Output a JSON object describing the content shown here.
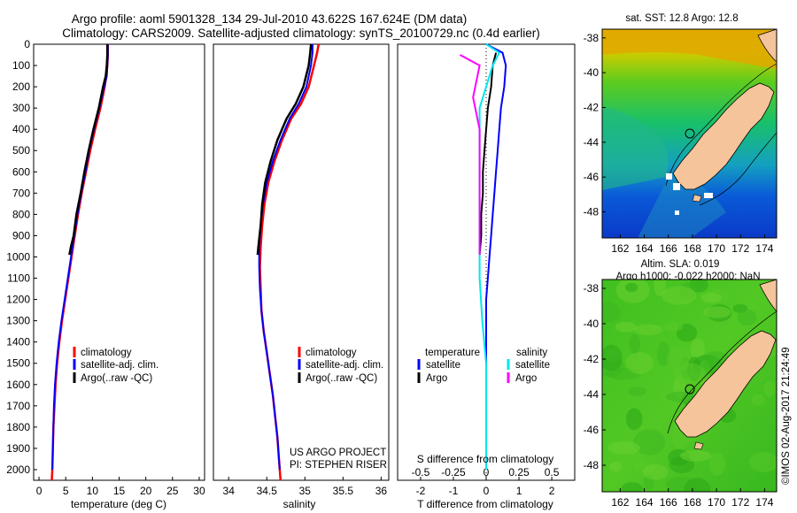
{
  "title_line1": "Argo profile: aoml 5901328_134 29-Jul-2010 43.622S 167.624E (DM data)",
  "title_line2": "Climatology: CARS2009. Satellite-adjusted climatology: synTS_20100729.nc (0.4d earlier)",
  "colors": {
    "climatology": "#ff0000",
    "satellite": "#0000ff",
    "argo": "#000000",
    "sal_satellite": "#00e5ee",
    "sal_argo": "#ff00ff"
  },
  "chart_data": [
    {
      "type": "line",
      "name": "temperature-profile",
      "xlabel": "temperature (deg C)",
      "xlim": [
        -1,
        31
      ],
      "ylim": [
        2050,
        0
      ],
      "xticks": [
        0,
        5,
        10,
        15,
        20,
        25,
        30
      ],
      "yticks": [
        0,
        100,
        200,
        300,
        400,
        500,
        600,
        700,
        800,
        900,
        1000,
        1100,
        1200,
        1300,
        1400,
        1500,
        1600,
        1700,
        1800,
        1900,
        2000
      ],
      "legend": [
        "climatology",
        "satellite-adj. clim.",
        "Argo(..raw -QC)"
      ],
      "series": [
        {
          "name": "climatology",
          "color": "#ff0000",
          "points": [
            [
              12.9,
              0
            ],
            [
              12.9,
              50
            ],
            [
              12.8,
              100
            ],
            [
              12.6,
              150
            ],
            [
              12.3,
              200
            ],
            [
              11.5,
              300
            ],
            [
              10.5,
              400
            ],
            [
              9.6,
              500
            ],
            [
              8.8,
              600
            ],
            [
              8.0,
              700
            ],
            [
              7.3,
              800
            ],
            [
              6.7,
              900
            ],
            [
              6.1,
              1000
            ],
            [
              5.5,
              1100
            ],
            [
              4.9,
              1200
            ],
            [
              4.3,
              1300
            ],
            [
              3.8,
              1400
            ],
            [
              3.4,
              1500
            ],
            [
              3.1,
              1600
            ],
            [
              2.9,
              1700
            ],
            [
              2.7,
              1800
            ],
            [
              2.6,
              1900
            ],
            [
              2.5,
              2000
            ],
            [
              2.4,
              2050
            ]
          ]
        },
        {
          "name": "satellite-adj. clim.",
          "color": "#0000ff",
          "points": [
            [
              12.9,
              0
            ],
            [
              12.9,
              50
            ],
            [
              12.8,
              100
            ],
            [
              12.7,
              150
            ],
            [
              12.2,
              200
            ],
            [
              11.3,
              300
            ],
            [
              10.3,
              400
            ],
            [
              9.4,
              500
            ],
            [
              8.7,
              600
            ],
            [
              7.9,
              700
            ],
            [
              7.2,
              800
            ],
            [
              6.6,
              900
            ],
            [
              6.0,
              1000
            ],
            [
              5.4,
              1100
            ],
            [
              4.8,
              1200
            ],
            [
              4.2,
              1300
            ],
            [
              3.7,
              1400
            ],
            [
              3.3,
              1500
            ],
            [
              3.0,
              1600
            ],
            [
              2.8,
              1700
            ],
            [
              2.7,
              1800
            ],
            [
              2.6,
              1900
            ],
            [
              2.5,
              2000
            ]
          ]
        },
        {
          "name": "Argo(..raw -QC)",
          "color": "#000000",
          "points": [
            [
              12.8,
              0
            ],
            [
              12.8,
              50
            ],
            [
              12.7,
              100
            ],
            [
              12.5,
              150
            ],
            [
              12.0,
              200
            ],
            [
              11.2,
              300
            ],
            [
              10.2,
              400
            ],
            [
              9.3,
              500
            ],
            [
              8.5,
              600
            ],
            [
              7.8,
              700
            ],
            [
              7.0,
              800
            ],
            [
              6.5,
              900
            ],
            [
              6.0,
              950
            ],
            [
              5.7,
              990
            ]
          ]
        }
      ]
    },
    {
      "type": "line",
      "name": "salinity-profile",
      "xlabel": "salinity",
      "xlim": [
        33.8,
        36.1
      ],
      "ylim": [
        2050,
        0
      ],
      "xticks": [
        34,
        34.5,
        35,
        35.5,
        36
      ],
      "legend": [
        "climatology",
        "satellite-adj. clim.",
        "Argo(..raw -QC)"
      ],
      "annotation": [
        "US ARGO PROJECT",
        "PI: STEPHEN RISER"
      ],
      "series": [
        {
          "name": "climatology",
          "color": "#ff0000",
          "points": [
            [
              35.18,
              0
            ],
            [
              35.16,
              40
            ],
            [
              35.12,
              100
            ],
            [
              35.05,
              200
            ],
            [
              34.95,
              280
            ],
            [
              34.82,
              350
            ],
            [
              34.7,
              450
            ],
            [
              34.6,
              550
            ],
            [
              34.52,
              650
            ],
            [
              34.47,
              750
            ],
            [
              34.44,
              850
            ],
            [
              34.42,
              950
            ],
            [
              34.41,
              1050
            ],
            [
              34.42,
              1150
            ],
            [
              34.43,
              1250
            ],
            [
              34.46,
              1350
            ],
            [
              34.5,
              1450
            ],
            [
              34.54,
              1550
            ],
            [
              34.58,
              1650
            ],
            [
              34.61,
              1750
            ],
            [
              34.64,
              1850
            ],
            [
              34.66,
              1950
            ],
            [
              34.68,
              2050
            ]
          ]
        },
        {
          "name": "satellite-adj. clim.",
          "color": "#0000ff",
          "points": [
            [
              35.1,
              0
            ],
            [
              35.1,
              40
            ],
            [
              35.08,
              100
            ],
            [
              35.02,
              200
            ],
            [
              34.92,
              280
            ],
            [
              34.8,
              350
            ],
            [
              34.68,
              450
            ],
            [
              34.58,
              550
            ],
            [
              34.5,
              650
            ],
            [
              34.45,
              750
            ],
            [
              34.42,
              850
            ],
            [
              34.4,
              950
            ],
            [
              34.4,
              1050
            ],
            [
              34.41,
              1150
            ],
            [
              34.43,
              1250
            ],
            [
              34.46,
              1350
            ],
            [
              34.5,
              1450
            ],
            [
              34.54,
              1550
            ],
            [
              34.58,
              1650
            ],
            [
              34.61,
              1750
            ],
            [
              34.64,
              1850
            ],
            [
              34.66,
              1950
            ],
            [
              34.67,
              2000
            ]
          ]
        },
        {
          "name": "Argo(..raw -QC)",
          "color": "#000000",
          "points": [
            [
              35.08,
              0
            ],
            [
              35.07,
              40
            ],
            [
              35.05,
              100
            ],
            [
              34.98,
              200
            ],
            [
              34.88,
              280
            ],
            [
              34.76,
              350
            ],
            [
              34.64,
              450
            ],
            [
              34.55,
              550
            ],
            [
              34.48,
              650
            ],
            [
              34.44,
              750
            ],
            [
              34.42,
              850
            ],
            [
              34.39,
              950
            ],
            [
              34.38,
              990
            ]
          ]
        }
      ]
    },
    {
      "type": "line",
      "name": "difference-profile",
      "xlabel": "T difference from climatology",
      "xlabel_top": "S difference from climatology",
      "xlim": [
        -2.7,
        2.7
      ],
      "xticks": [
        -2,
        -1,
        0,
        1,
        2
      ],
      "xticks_top": [
        -0.5,
        -0.25,
        0,
        0.25,
        0.5
      ],
      "legend_temperature": {
        "title": "temperature",
        "items": [
          "satellite",
          "Argo"
        ]
      },
      "legend_salinity": {
        "title": "salinity",
        "items": [
          "satellite",
          "Argo"
        ]
      },
      "series": [
        {
          "name": "T satellite",
          "color": "#0000ff",
          "points": [
            [
              0,
              0
            ],
            [
              0.5,
              40
            ],
            [
              0.6,
              100
            ],
            [
              0.55,
              200
            ],
            [
              0.45,
              300
            ],
            [
              0.4,
              400
            ],
            [
              0.35,
              500
            ],
            [
              0.3,
              600
            ],
            [
              0.25,
              700
            ],
            [
              0.2,
              800
            ],
            [
              0.15,
              900
            ],
            [
              0.1,
              1000
            ],
            [
              0.05,
              1100
            ],
            [
              0,
              1200
            ],
            [
              0,
              2000
            ]
          ]
        },
        {
          "name": "T Argo",
          "color": "#000000",
          "points": [
            [
              0.3,
              40
            ],
            [
              0.2,
              100
            ],
            [
              0.15,
              200
            ],
            [
              0.05,
              300
            ],
            [
              0,
              400
            ],
            [
              -0.05,
              500
            ],
            [
              -0.1,
              600
            ],
            [
              -0.1,
              700
            ],
            [
              -0.15,
              800
            ],
            [
              -0.15,
              900
            ],
            [
              -0.2,
              990
            ]
          ]
        },
        {
          "name": "S satellite",
          "color": "#00e5ee",
          "points": [
            [
              0,
              0
            ],
            [
              0.1,
              40
            ],
            [
              0.05,
              100
            ],
            [
              0,
              200
            ],
            [
              -0.05,
              300
            ],
            [
              -0.05,
              500
            ],
            [
              -0.05,
              700
            ],
            [
              -0.05,
              900
            ],
            [
              -0.05,
              1100
            ],
            [
              -0.03,
              1300
            ],
            [
              0,
              1500
            ],
            [
              0,
              2000
            ]
          ]
        },
        {
          "name": "S Argo",
          "color": "#ff00ff",
          "points": [
            [
              -0.2,
              50
            ],
            [
              -0.05,
              100
            ],
            [
              -0.1,
              250
            ],
            [
              -0.05,
              400
            ],
            [
              -0.05,
              600
            ],
            [
              -0.05,
              800
            ],
            [
              -0.05,
              990
            ]
          ]
        }
      ]
    },
    {
      "type": "heatmap",
      "name": "sst-map",
      "title": "sat. SST: 12.8 Argo: 12.8",
      "xticks": [
        162,
        164,
        166,
        168,
        170,
        172,
        174
      ],
      "yticks": [
        -38,
        -40,
        -42,
        -44,
        -46,
        -48
      ],
      "xlim": [
        160.5,
        175
      ],
      "ylim": [
        -49.5,
        -37.5
      ]
    },
    {
      "type": "heatmap",
      "name": "sla-map",
      "title_line1": "Altim. SLA: 0.019",
      "title_line2": "Argo h1000: -0.022 h2000: NaN",
      "xticks": [
        162,
        164,
        166,
        168,
        170,
        172,
        174
      ],
      "yticks": [
        -38,
        -40,
        -42,
        -44,
        -46,
        -48
      ],
      "xlim": [
        160.5,
        175
      ],
      "ylim": [
        -49.5,
        -37.5
      ]
    }
  ],
  "watermark": "©IMOS 02-Aug-2017 21:24:49"
}
